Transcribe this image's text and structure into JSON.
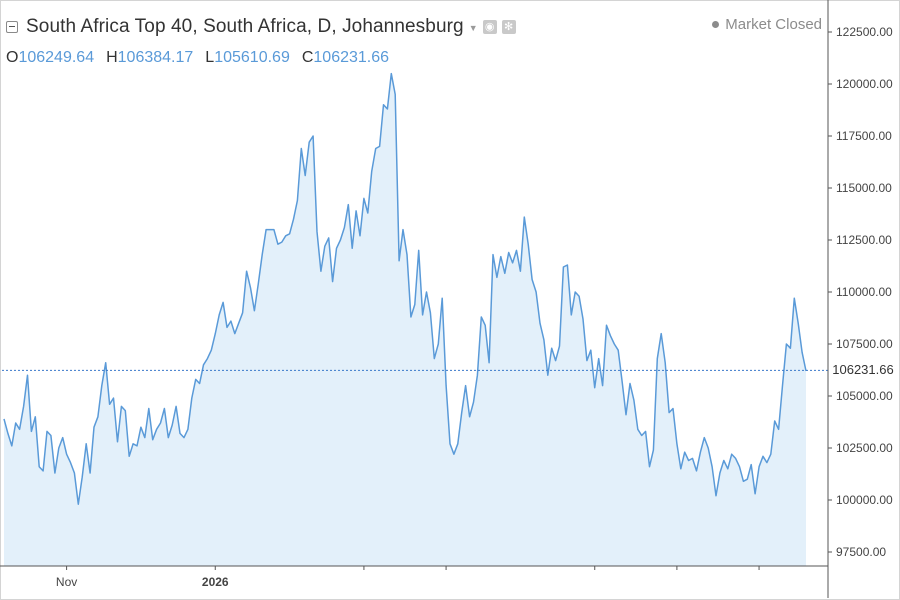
{
  "header": {
    "title": "South Africa Top 40, South Africa, D, Johannesburg",
    "status": "Market Closed"
  },
  "ohlc": {
    "o_label": "O",
    "o_value": "106249.64",
    "h_label": "H",
    "h_value": "106384.17",
    "l_label": "L",
    "l_value": "105610.69",
    "c_label": "C",
    "c_value": "106231.66"
  },
  "colors": {
    "line": "#5a9ad8",
    "fill": "#e3f0fa",
    "price_line": "#3a78c9"
  },
  "chart_data": {
    "type": "area",
    "title": "South Africa Top 40, South Africa, D, Johannesburg",
    "xlabel": "",
    "ylabel": "",
    "ylim": [
      96500,
      123500
    ],
    "y_ticks": [
      97500,
      100000,
      102500,
      105000,
      107500,
      110000,
      112500,
      115000,
      117500,
      120000,
      122500
    ],
    "y_tick_labels": [
      "97500.00",
      "100000.00",
      "102500.00",
      "105000.00",
      "107500.00",
      "110000.00",
      "112500.00",
      "115000.00",
      "117500.00",
      "120000.00",
      "122500.00"
    ],
    "x_ticks": [
      {
        "index": 16,
        "label": "Nov"
      },
      {
        "index": 54,
        "label": "2026"
      },
      {
        "index": 92,
        "label": ""
      },
      {
        "index": 113,
        "label": ""
      },
      {
        "index": 151,
        "label": ""
      },
      {
        "index": 172,
        "label": ""
      },
      {
        "index": 193,
        "label": ""
      }
    ],
    "last_price": 106231.66,
    "last_price_label": "106231.66",
    "grid": false,
    "values": [
      103900,
      103200,
      102600,
      103700,
      103400,
      104500,
      106000,
      103300,
      104000,
      101600,
      101400,
      103300,
      103100,
      101300,
      102500,
      103000,
      102200,
      101800,
      101300,
      99800,
      101100,
      102700,
      101300,
      103500,
      104000,
      105500,
      106600,
      104600,
      104900,
      102800,
      104500,
      104300,
      102100,
      102700,
      102600,
      103500,
      103000,
      104400,
      102900,
      103400,
      103700,
      104400,
      103000,
      103600,
      104500,
      103200,
      103000,
      103400,
      104900,
      105800,
      105600,
      106500,
      106800,
      107200,
      108000,
      108900,
      109500,
      108300,
      108600,
      108000,
      108500,
      109000,
      111000,
      110200,
      109100,
      110400,
      111800,
      113000,
      113000,
      113000,
      112300,
      112400,
      112700,
      112800,
      113500,
      114400,
      116900,
      115600,
      117200,
      117500,
      112900,
      111000,
      112200,
      112600,
      110500,
      112100,
      112500,
      113100,
      114200,
      112100,
      113900,
      112700,
      114500,
      113800,
      115800,
      116900,
      117000,
      119000,
      118800,
      120500,
      119500,
      111500,
      113000,
      111800,
      108800,
      109400,
      112000,
      108900,
      110000,
      109000,
      106800,
      107500,
      109700,
      105500,
      102700,
      102200,
      102700,
      104200,
      105500,
      104000,
      104700,
      106000,
      108800,
      108400,
      106600,
      111800,
      110700,
      111700,
      110900,
      111900,
      111400,
      112000,
      111000,
      113600,
      112300,
      110600,
      110000,
      108500,
      107700,
      106000,
      107300,
      106700,
      107400,
      111200,
      111300,
      108900,
      110000,
      109800,
      108700,
      106700,
      107200,
      105400,
      106800,
      105500,
      108400,
      107900,
      107500,
      107200,
      105700,
      104100,
      105600,
      104800,
      103400,
      103100,
      103300,
      101600,
      102400,
      106800,
      108000,
      106600,
      104200,
      104400,
      102700,
      101500,
      102300,
      101900,
      102000,
      101400,
      102300,
      103000,
      102500,
      101600,
      100200,
      101300,
      101900,
      101500,
      102200,
      102000,
      101600,
      100900,
      101000,
      101700,
      100300,
      101600,
      102100,
      101800,
      102200,
      103800,
      103400,
      105500,
      107500,
      107300,
      109700,
      108500,
      107100,
      106200
    ]
  }
}
